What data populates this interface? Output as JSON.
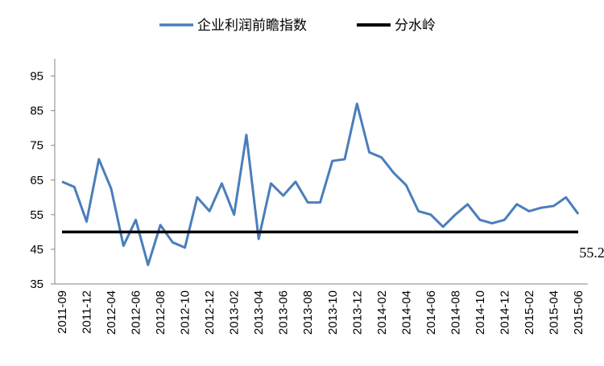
{
  "chart_data": {
    "type": "line",
    "categories": [
      "2011-09",
      null,
      "2011-12",
      null,
      "2012-04",
      null,
      "2012-06",
      null,
      "2012-08",
      null,
      "2012-10",
      null,
      "2012-12",
      null,
      "2013-02",
      null,
      "2013-04",
      null,
      "2013-06",
      null,
      "2013-08",
      null,
      "2013-10",
      null,
      "2013-12",
      null,
      "2014-02",
      null,
      "2014-04",
      null,
      "2014-06",
      null,
      "2014-08",
      null,
      "2014-10",
      null,
      "2014-12",
      null,
      "2015-02",
      null,
      "2015-04",
      null,
      "2015-06"
    ],
    "series": [
      {
        "name": "企业利润前瞻指数",
        "color": "#4a7ebb",
        "values": [
          64.5,
          63,
          53,
          71,
          62.5,
          46,
          53.5,
          40.5,
          52,
          47,
          45.5,
          60,
          56,
          64,
          55,
          78,
          48,
          64,
          60.5,
          64.5,
          58.5,
          58.5,
          70.5,
          71,
          87,
          73,
          71.5,
          67,
          63.5,
          56,
          55,
          51.5,
          55,
          58,
          53.5,
          52.5,
          53.5,
          58,
          56,
          57,
          57.5,
          60,
          55.2
        ]
      },
      {
        "name": "分水岭",
        "color": "#000000",
        "values": [
          50,
          50,
          50,
          50,
          50,
          50,
          50,
          50,
          50,
          50,
          50,
          50,
          50,
          50,
          50,
          50,
          50,
          50,
          50,
          50,
          50,
          50,
          50,
          50,
          50,
          50,
          50,
          50,
          50,
          50,
          50,
          50,
          50,
          50,
          50,
          50,
          50,
          50,
          50,
          50,
          50,
          50,
          50
        ]
      }
    ],
    "annotation": "55.2",
    "annotation_color": "#ff0000",
    "ylim": [
      35,
      100
    ],
    "yticks": [
      35,
      45,
      55,
      65,
      75,
      85,
      95
    ],
    "grid": false,
    "legend": "top"
  }
}
